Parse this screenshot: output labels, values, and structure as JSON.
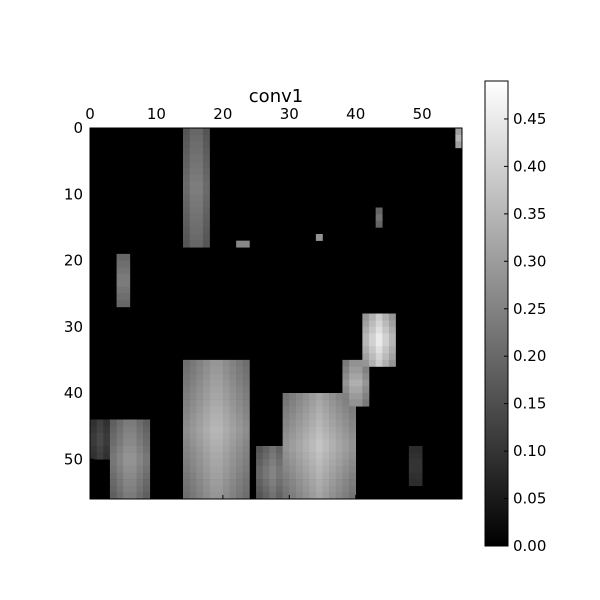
{
  "chart_data": {
    "type": "heatmap",
    "title": "conv1",
    "colormap": "gray",
    "grid": false,
    "x_axis_position": "top",
    "x_ticks": [
      "0",
      "10",
      "20",
      "30",
      "40",
      "50"
    ],
    "y_ticks": [
      "0",
      "10",
      "20",
      "30",
      "40",
      "50"
    ],
    "x_range": [
      0,
      56
    ],
    "y_range": [
      0,
      56
    ],
    "grid_size": [
      56,
      56
    ],
    "colorbar": {
      "range": [
        0.0,
        0.49
      ],
      "ticks": [
        "0.00",
        "0.05",
        "0.10",
        "0.15",
        "0.20",
        "0.25",
        "0.30",
        "0.35",
        "0.40",
        "0.45"
      ]
    },
    "blobs": [
      {
        "r0": 0,
        "r1": 18,
        "c0": 14,
        "c1": 18,
        "value": 0.26
      },
      {
        "r0": 19,
        "r1": 27,
        "c0": 4,
        "c1": 6,
        "value": 0.28
      },
      {
        "r0": 17,
        "r1": 18,
        "c0": 22,
        "c1": 24,
        "value": 0.3
      },
      {
        "r0": 16,
        "r1": 17,
        "c0": 34,
        "c1": 35,
        "value": 0.28
      },
      {
        "r0": 12,
        "r1": 15,
        "c0": 43,
        "c1": 44,
        "value": 0.22
      },
      {
        "r0": 0,
        "r1": 3,
        "c0": 55,
        "c1": 56,
        "value": 0.35
      },
      {
        "r0": 28,
        "r1": 36,
        "c0": 41,
        "c1": 46,
        "value": 0.46
      },
      {
        "r0": 35,
        "r1": 42,
        "c0": 38,
        "c1": 42,
        "value": 0.36
      },
      {
        "r0": 40,
        "r1": 56,
        "c0": 29,
        "c1": 40,
        "value": 0.38
      },
      {
        "r0": 48,
        "r1": 56,
        "c0": 25,
        "c1": 30,
        "value": 0.26
      },
      {
        "r0": 35,
        "r1": 56,
        "c0": 14,
        "c1": 24,
        "value": 0.36
      },
      {
        "r0": 44,
        "r1": 56,
        "c0": 3,
        "c1": 9,
        "value": 0.3
      },
      {
        "r0": 44,
        "r1": 50,
        "c0": 0,
        "c1": 3,
        "value": 0.14
      },
      {
        "r0": 48,
        "r1": 54,
        "c0": 48,
        "c1": 50,
        "value": 0.12
      }
    ]
  }
}
